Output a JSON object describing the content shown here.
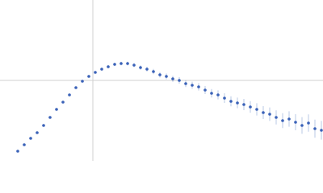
{
  "chart_data": {
    "type": "scatter",
    "x": [
      5.5,
      7.5,
      9.5,
      11.5,
      13.5,
      15.5,
      17.5,
      19.5,
      21.5,
      23.5,
      25.5,
      27.5,
      29.5,
      31.5,
      33.5,
      35.5,
      37.5,
      39.5,
      41.5,
      43.5,
      45.5,
      47.5,
      49.5,
      51.5,
      53.5,
      55.5,
      57.5,
      59.5,
      61.5,
      63.5,
      65.5,
      67.5,
      69.5,
      71.5,
      73.5,
      75.5,
      77.5,
      79.5,
      81.5,
      83.5,
      85.5,
      87.5,
      89.5,
      91.5,
      93.5,
      95.5,
      97.5,
      99.5
    ],
    "series": [
      {
        "color": "#3a62b8",
        "values": [
          6,
          10,
          14,
          17.5,
          22,
          27,
          32,
          36.5,
          41,
          45.5,
          49.5,
          52.5,
          55,
          57,
          58.5,
          60,
          60.5,
          60.5,
          59.5,
          58,
          57,
          55.5,
          53.5,
          52.5,
          51,
          50,
          48,
          47,
          46,
          44,
          42,
          41,
          39,
          37,
          36,
          35,
          33.5,
          32,
          30,
          29,
          27,
          25,
          26,
          24,
          22,
          23.5,
          20,
          19
        ],
        "errors": [
          0.3,
          0.3,
          0.4,
          0.4,
          0.4,
          0.5,
          0.5,
          0.6,
          0.6,
          0.7,
          0.7,
          0.8,
          0.8,
          0.9,
          1,
          1,
          1.1,
          1.2,
          1.3,
          1.4,
          1.5,
          1.6,
          1.7,
          1.8,
          1.9,
          2,
          2.1,
          2.2,
          2.3,
          2.5,
          2.6,
          2.8,
          3,
          3.1,
          3.3,
          3.5,
          3.6,
          3.8,
          4,
          4.2,
          4.4,
          4.6,
          4.8,
          5,
          5.2,
          5.4,
          5.6,
          5.8
        ]
      }
    ],
    "xlim": [
      0,
      100
    ],
    "ylim": [
      0,
      100
    ],
    "xticks": [
      28.75
    ],
    "yticks": [
      50
    ],
    "grid": true
  }
}
